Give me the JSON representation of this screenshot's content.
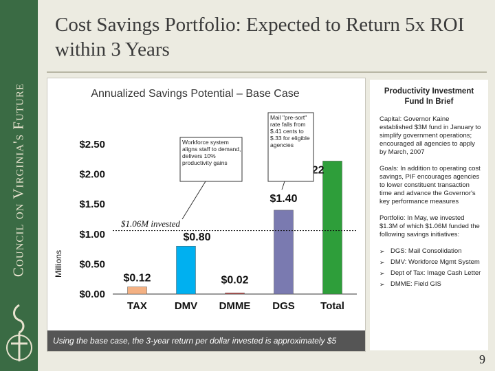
{
  "sidebar": {
    "text": "Council on Virginia's Future",
    "background": "#3a6b44"
  },
  "page": {
    "title": "Cost Savings Portfolio: Expected to Return 5x ROI within 3 Years",
    "page_number": "9"
  },
  "chart": {
    "footer": "Using the base case, the 3-year return per dollar invested is approximately $5",
    "callouts": {
      "workforce": "Workforce system aligns staff to demand, delivers 10% productivity gains",
      "mail": "Mail \"pre-sort\" rate falls from $.41 cents to $.33 for eligible agencies"
    },
    "invested_label": "$1.06M invested"
  },
  "chart_data": {
    "type": "bar",
    "title": "Annualized Savings Potential – Base Case",
    "ylabel": "Millions",
    "categories": [
      "TAX",
      "DMV",
      "DMME",
      "DGS",
      "Total"
    ],
    "values": [
      0.12,
      0.8,
      0.02,
      1.4,
      2.22
    ],
    "value_labels": [
      "$0.12",
      "$0.80",
      "$0.02",
      "$1.40",
      "$2.22"
    ],
    "colors": [
      "#f4b183",
      "#00b0f0",
      "#c0504d",
      "#7a7ab0",
      "#2e9e3a"
    ],
    "yticks": [
      "$0.00",
      "$0.50",
      "$1.00",
      "$1.50",
      "$2.00",
      "$2.50"
    ],
    "ylim": [
      0,
      2.5
    ],
    "reference_line": 1.06,
    "grid": false
  },
  "side_panel": {
    "title": "Productivity Investment Fund In Brief",
    "capital": "Capital: Governor Kaine established $3M fund in January to simplify government operations; encouraged all agencies to apply by March, 2007",
    "goals": "Goals: In addition to operating cost savings, PIF encourages agencies to lower constituent transaction time and advance the Governor's key performance measures",
    "portfolio": "Portfolio: In May, we invested $1.3M of which $1.06M funded the following savings initiatives:",
    "items": [
      "DGS: Mail Consolidation",
      "DMV: Workforce Mgmt System",
      "Dept of Tax: Image Cash Letter",
      "DMME: Field GIS"
    ]
  }
}
